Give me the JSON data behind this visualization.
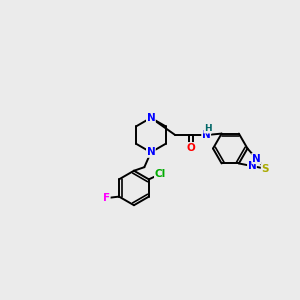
{
  "background_color": "#ebebeb",
  "atom_colors": {
    "C": "#000000",
    "N": "#0000ff",
    "O": "#ff0000",
    "S": "#aaaa00",
    "F": "#ff00ff",
    "Cl": "#00aa00",
    "H": "#006666"
  },
  "bond_color": "#000000",
  "bond_width": 1.4,
  "figsize": [
    3.0,
    3.0
  ],
  "dpi": 100
}
